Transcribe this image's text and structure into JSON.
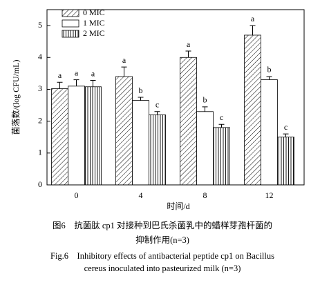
{
  "chart_data": {
    "type": "bar",
    "categories": [
      "0",
      "4",
      "8",
      "12"
    ],
    "xlabel": "时间/d",
    "ylabel": "菌落数/(log CFU/mL)",
    "ylim": [
      0,
      5.5
    ],
    "yticks": [
      0,
      1,
      2,
      3,
      4,
      5
    ],
    "series": [
      {
        "name": "0 MIC",
        "color": "#000000",
        "pattern": "diagonal",
        "values": [
          3.02,
          3.4,
          4.0,
          4.7
        ],
        "errors": [
          0.2,
          0.3,
          0.2,
          0.3
        ],
        "letters": [
          "a",
          "a",
          "a",
          "a"
        ]
      },
      {
        "name": "1 MIC",
        "color": "#000000",
        "pattern": "none",
        "values": [
          3.1,
          2.65,
          2.3,
          3.3
        ],
        "errors": [
          0.2,
          0.1,
          0.15,
          0.1
        ],
        "letters": [
          "a",
          "b",
          "b",
          "b"
        ]
      },
      {
        "name": "2 MIC",
        "color": "#000000",
        "pattern": "vertical",
        "values": [
          3.08,
          2.2,
          1.8,
          1.5
        ],
        "errors": [
          0.2,
          0.1,
          0.1,
          0.1
        ],
        "letters": [
          "a",
          "c",
          "c",
          "c"
        ]
      }
    ],
    "legend": "upper-left"
  },
  "caption": {
    "zh_line1": "图6　抗菌肽 cp1 对接种到巴氏杀菌乳中的蜡样芽孢杆菌的",
    "zh_line2": "抑制作用(n=3)",
    "en_line1": "Fig.6　Inhibitory effects of antibacterial peptide cp1 on Bacillus",
    "en_line2": "cereus inoculated into pasteurized milk (n=3)"
  }
}
